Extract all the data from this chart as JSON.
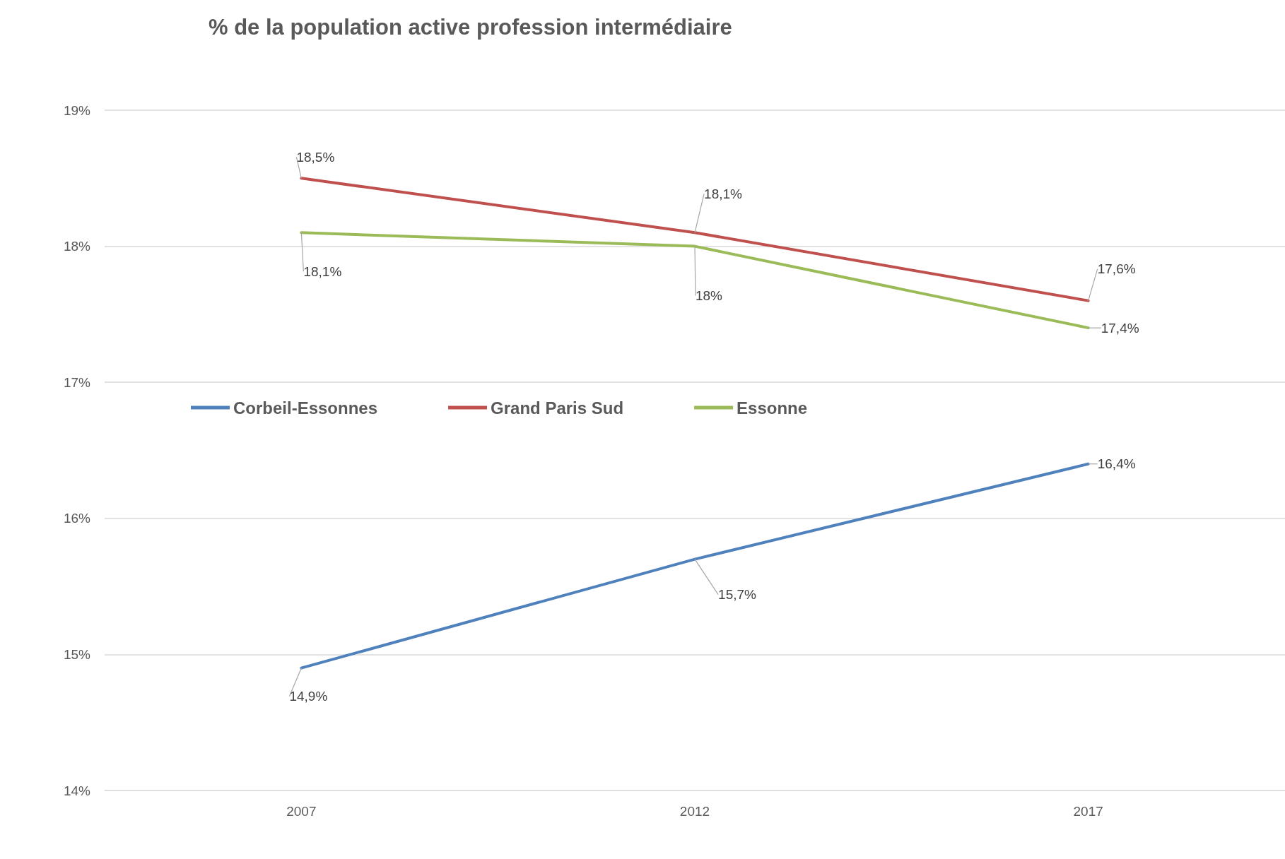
{
  "chart_data": {
    "type": "line",
    "title": "% de la population active profession intermédiaire",
    "categories": [
      "2007",
      "2012",
      "2017"
    ],
    "series": [
      {
        "name": "Corbeil-Essonnes",
        "color": "#4f81bd",
        "values": [
          14.9,
          15.7,
          16.4
        ],
        "value_labels": [
          "14,9%",
          "15,7%",
          "16,4%"
        ]
      },
      {
        "name": "Grand Paris Sud",
        "color": "#c0504d",
        "values": [
          18.5,
          18.1,
          17.6
        ],
        "value_labels": [
          "18,5%",
          "18,1%",
          "17,6%"
        ]
      },
      {
        "name": "Essonne",
        "color": "#9bbb59",
        "values": [
          18.1,
          18.0,
          17.4
        ],
        "value_labels": [
          "18,1%",
          "18%",
          "17,4%"
        ]
      }
    ],
    "ylim": [
      14,
      19
    ],
    "yticks": [
      {
        "value": 14,
        "label": "14%"
      },
      {
        "value": 15,
        "label": "15%"
      },
      {
        "value": 16,
        "label": "16%"
      },
      {
        "value": 17,
        "label": "17%"
      },
      {
        "value": 18,
        "label": "18%"
      },
      {
        "value": 19,
        "label": "19%"
      }
    ],
    "grid": "y",
    "legend": "left",
    "marker": "none",
    "line_style": "solid"
  }
}
